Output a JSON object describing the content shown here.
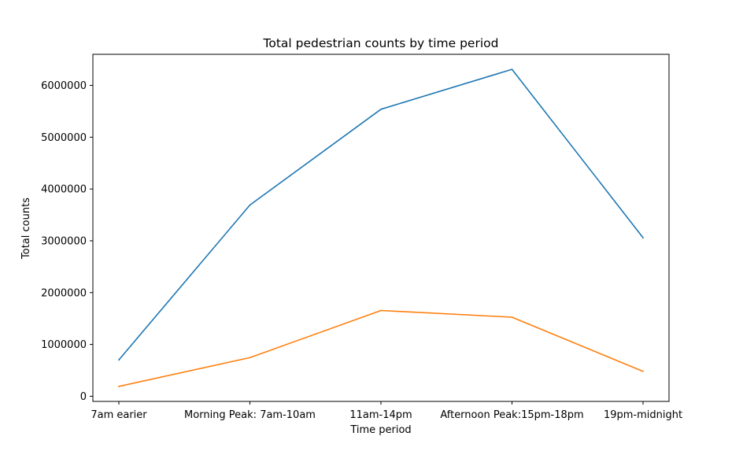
{
  "chart_data": {
    "type": "line",
    "title": "Total pedestrian counts by time period",
    "xlabel": "Time period",
    "ylabel": "Total counts",
    "categories": [
      "7am earier",
      "Morning Peak: 7am-10am",
      "11am-14pm",
      "Afternoon Peak:15pm-18pm",
      "19pm-midnight"
    ],
    "ylim": [
      -100000,
      6600000
    ],
    "yticks": [
      0,
      1000000,
      2000000,
      3000000,
      4000000,
      5000000,
      6000000
    ],
    "ytick_labels": [
      "0",
      "1000000",
      "2000000",
      "3000000",
      "4000000",
      "5000000",
      "6000000"
    ],
    "grid": false,
    "series": [
      {
        "color": "#1f77b4",
        "values": [
          700000,
          3690000,
          5540000,
          6310000,
          3060000
        ]
      },
      {
        "color": "#ff7f0e",
        "values": [
          190000,
          745000,
          1655000,
          1525000,
          480000
        ]
      }
    ]
  }
}
